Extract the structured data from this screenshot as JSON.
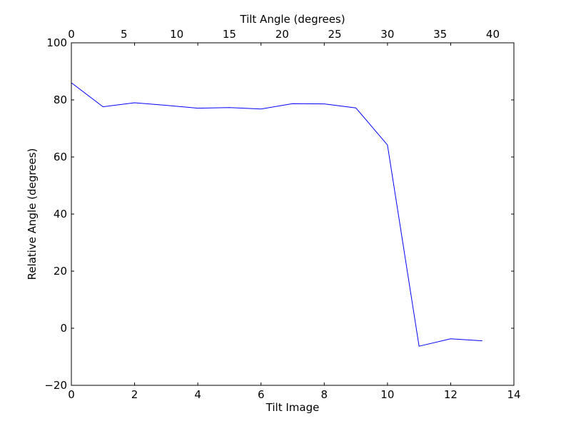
{
  "chart_data": {
    "type": "line",
    "title": "",
    "xlabel": "Tilt Image",
    "ylabel": "Relative Angle (degrees)",
    "top_xlabel": "Tilt Angle (degrees)",
    "xlim": [
      0,
      14
    ],
    "ylim": [
      -20,
      100
    ],
    "top_xlim": [
      0,
      42
    ],
    "xticks": [
      0,
      2,
      4,
      6,
      8,
      10,
      12,
      14
    ],
    "yticks": [
      -20,
      0,
      20,
      40,
      60,
      80,
      100
    ],
    "top_xticks": [
      0,
      5,
      10,
      15,
      20,
      25,
      30,
      35,
      40
    ],
    "grid": false,
    "line_color": "#0000ff",
    "series": [
      {
        "x": [
          0,
          1,
          2,
          3,
          4,
          5,
          6,
          7,
          8,
          9,
          10,
          11,
          12,
          13
        ],
        "values": [
          86.0,
          77.6,
          79.0,
          78.1,
          77.1,
          77.3,
          76.8,
          78.7,
          78.6,
          77.2,
          64.2,
          -6.3,
          -3.7,
          -4.4
        ]
      }
    ]
  }
}
